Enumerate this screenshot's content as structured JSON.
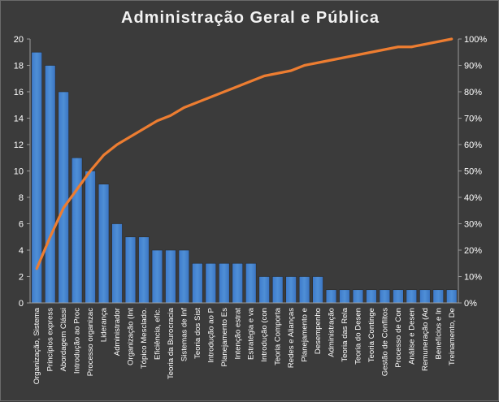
{
  "chart_data": {
    "type": "bar",
    "title": "Administração  Geral  e Pública",
    "categories": [
      "Organização, Sistema",
      "Princípios express",
      "Abordagem Clássi",
      "Introdução ao Proc",
      "Processo organizac",
      "Liderança",
      "Administrador",
      "Organização (Int",
      "Tópico Mesclado.",
      "Eficiência, efic.",
      "Teoria da Burocracia",
      "Sistemas de Inf",
      "Teoria dos Sist",
      "Introdução ao P",
      "Planejamento Es",
      "Intenção estrat",
      "Estratégia e va",
      "Introdução (con",
      "Teoria Comporta",
      "Redes e Alianças",
      "Planejamento e",
      "Desempenho",
      "Administração",
      "Teoria das Rela",
      "Teoria do Desen",
      "Teoria Continge",
      "Gestão de Conflitos",
      "Processo de Con",
      "Análise e Desen",
      "Remuneração (Ad",
      "Benefícios e In",
      "Treinamento, De"
    ],
    "series": [
      {
        "type": "bar",
        "axis": "left",
        "color": "#4f8fd6",
        "values": [
          19,
          18,
          16,
          11,
          10,
          9,
          6,
          5,
          5,
          4,
          4,
          4,
          3,
          3,
          3,
          3,
          3,
          2,
          2,
          2,
          2,
          2,
          1,
          1,
          1,
          1,
          1,
          1,
          1,
          1,
          1,
          1
        ]
      },
      {
        "type": "line",
        "axis": "right",
        "color": "#ed7d31",
        "values": [
          0.13,
          0.25,
          0.36,
          0.43,
          0.5,
          0.56,
          0.6,
          0.63,
          0.66,
          0.69,
          0.71,
          0.74,
          0.76,
          0.78,
          0.8,
          0.82,
          0.84,
          0.86,
          0.87,
          0.88,
          0.9,
          0.91,
          0.92,
          0.93,
          0.94,
          0.95,
          0.96,
          0.97,
          0.97,
          0.98,
          0.99,
          1.0
        ]
      }
    ],
    "y_left": {
      "min": 0,
      "max": 20,
      "ticks": [
        "0",
        "2",
        "4",
        "6",
        "8",
        "10",
        "12",
        "14",
        "16",
        "18",
        "20"
      ]
    },
    "y_right": {
      "min": 0,
      "max": 1,
      "ticks": [
        "0%",
        "10%",
        "20%",
        "30%",
        "40%",
        "50%",
        "60%",
        "70%",
        "80%",
        "90%",
        "100%"
      ]
    },
    "grid": false,
    "legend": "none",
    "background_color": "#3b3b3b"
  }
}
